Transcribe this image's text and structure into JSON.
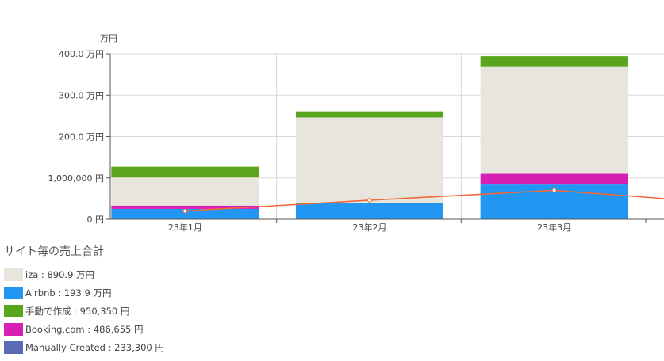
{
  "chart_data": {
    "type": "bar",
    "stacked": true,
    "unit_label": "万円",
    "categories": [
      "23年1月",
      "23年2月",
      "23年3月"
    ],
    "y_ticks": [
      {
        "value": 0,
        "label": "0 円"
      },
      {
        "value": 100,
        "label": "1,000,000 円"
      },
      {
        "value": 200,
        "label": "200.0 万円"
      },
      {
        "value": 300,
        "label": "300.0 万円"
      },
      {
        "value": 400,
        "label": "400.0 万円"
      }
    ],
    "ylim": [
      0,
      400
    ],
    "grid": true,
    "series": [
      {
        "key": "airbnb",
        "color": "#2196f3",
        "values": [
          25,
          40,
          84
        ]
      },
      {
        "key": "booking",
        "color": "#d81fb3",
        "values": [
          8,
          0,
          26
        ]
      },
      {
        "key": "iza",
        "color": "#e8e6dc",
        "values": [
          68,
          206,
          260
        ]
      },
      {
        "key": "manual_jp",
        "color": "#5aa51e",
        "values": [
          26,
          15,
          24
        ]
      }
    ],
    "line": {
      "color": "#f06a3a",
      "values": [
        20,
        46,
        70
      ],
      "right_edge_value": 50
    },
    "legend_placement": "bottom-left"
  },
  "legend": {
    "title": "サイト毎の売上合計",
    "items": [
      {
        "label": "iza : 890.9 万円",
        "color": "#e8e6dc"
      },
      {
        "label": "Airbnb : 193.9 万円",
        "color": "#2196f3"
      },
      {
        "label": "手動で作成 : 950,350 円",
        "color": "#5aa51e"
      },
      {
        "label": "Booking.com : 486,655 円",
        "color": "#d81fb3"
      },
      {
        "label": "Manually Created : 233,300 円",
        "color": "#5b6bb5"
      }
    ]
  }
}
